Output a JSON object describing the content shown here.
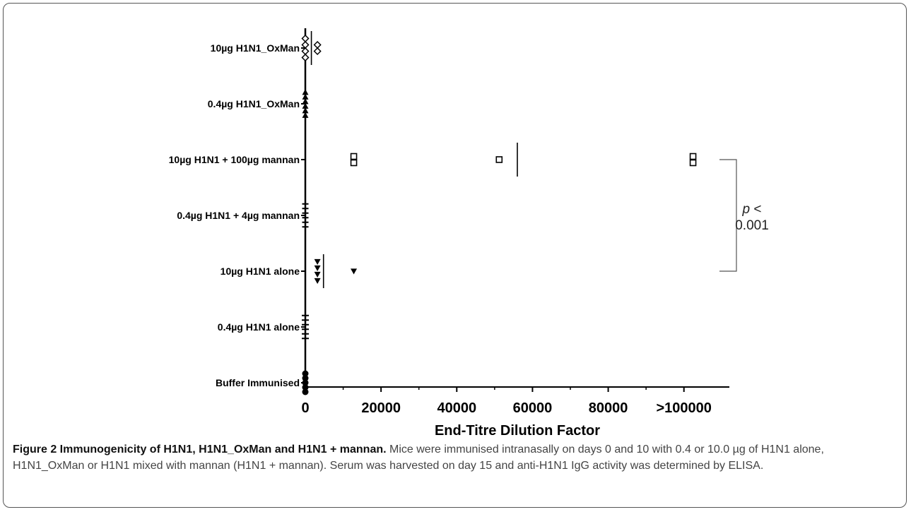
{
  "chart_data": {
    "type": "scatter",
    "xlabel": "End-Titre Dilution Factor",
    "x_ticks": [
      "0",
      "20000",
      "40000",
      "60000",
      "80000",
      ">100000"
    ],
    "x_tick_values": [
      0,
      20000,
      40000,
      60000,
      80000,
      100000
    ],
    "xlim": [
      0,
      112000
    ],
    "categories": [
      "10µg H1N1_OxMan",
      "0.4µg H1N1_OxMan",
      "10µg H1N1 + 100µg mannan",
      "0.4µg H1N1 + 4µg mannan",
      "10µg H1N1 alone",
      "0.4µg H1N1 alone",
      "Buffer Immunised"
    ],
    "series": [
      {
        "category": "10µg H1N1_OxMan",
        "marker": "diamond-open",
        "x": [
          0,
          0,
          0,
          0,
          3200,
          3200
        ],
        "median": 1600
      },
      {
        "category": "0.4µg H1N1_OxMan",
        "marker": "triangle-up",
        "x": [
          0,
          0,
          0,
          0,
          0,
          0
        ],
        "median": 0
      },
      {
        "category": "10µg H1N1 + 100µg mannan",
        "marker": "square-open",
        "x": [
          12800,
          12800,
          51200,
          102400,
          102400
        ],
        "median": 56000
      },
      {
        "category": "0.4µg H1N1 + 4µg mannan",
        "marker": "cross",
        "x": [
          0,
          0,
          0,
          0,
          0,
          0
        ],
        "median": 0
      },
      {
        "category": "10µg H1N1 alone",
        "marker": "triangle-down",
        "x": [
          3200,
          3200,
          3200,
          3200,
          12800
        ],
        "median": 4800
      },
      {
        "category": "0.4µg H1N1 alone",
        "marker": "tick",
        "x": [
          0,
          0,
          0,
          0,
          0,
          0
        ],
        "median": 0
      },
      {
        "category": "Buffer Immunised",
        "marker": "circle",
        "x": [
          0,
          0,
          0,
          0,
          0
        ],
        "median": 0
      }
    ],
    "annotation": {
      "text_italic": "p",
      "text_line1": " <",
      "text_line2": "0.001",
      "bracket_between": [
        "10µg H1N1 + 100µg mannan",
        "10µg H1N1 alone"
      ]
    }
  },
  "caption": {
    "bold": "Figure 2 Immunogenicity of H1N1, H1N1_OxMan and H1N1 + mannan.",
    "text": " Mice were immunised intranasally on days 0 and 10 with 0.4 or 10.0 µg of H1N1 alone, H1N1_OxMan or H1N1 mixed with mannan (H1N1 + mannan). Serum was harvested on day 15 and anti-H1N1 IgG activity was determined by ELISA."
  }
}
